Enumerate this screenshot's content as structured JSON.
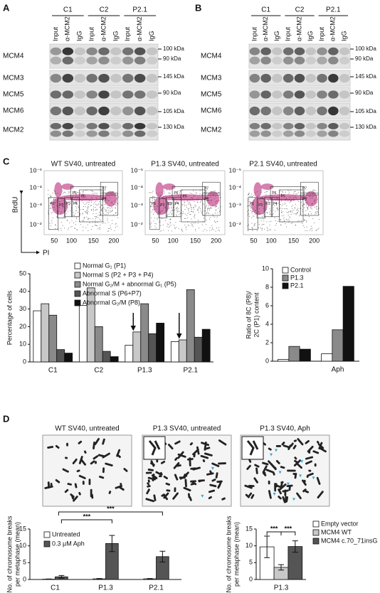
{
  "panel_labels": [
    "A",
    "B",
    "C",
    "D"
  ],
  "blots": [
    {
      "groups": [
        "C1",
        "C2",
        "P2.1"
      ],
      "lanes": [
        "Input",
        "α-MCM2",
        "IgG",
        "Input",
        "α-MCM2",
        "IgG",
        "Input",
        "α-MCM2",
        "IgG"
      ],
      "rows": [
        "MCM4",
        "MCM3",
        "MCM5",
        "MCM6",
        "MCM2"
      ],
      "markers": [
        "100 kDa",
        "90 kDa",
        "145 kDa",
        "90 kDa",
        "105 kDa",
        "130 kDa"
      ]
    },
    {
      "groups": [
        "C1",
        "C2",
        "P2.1"
      ],
      "lanes": [
        "Input",
        "α-MCM2",
        "IgG",
        "Input",
        "α-MCM2",
        "IgG",
        "Input",
        "α-MCM2",
        "IgG"
      ],
      "rows": [
        "MCM4",
        "MCM3",
        "MCM5",
        "MCM6",
        "MCM2"
      ],
      "markers": [
        "100 kDa",
        "90 kDa",
        "145 kDa",
        "90 kDa",
        "105 kDa",
        "130 kDa"
      ]
    }
  ],
  "flow": {
    "titles": [
      "WT SV40, untreated",
      "P1.3 SV40, untreated",
      "P2.1 SV40, untreated"
    ],
    "y_label": "BrdU",
    "x_label": "PI",
    "yticks": [
      "10⁻⁵",
      "10⁻⁴",
      "10⁻³",
      "10⁻²"
    ],
    "xticks": [
      50,
      100,
      150,
      200
    ],
    "gates": [
      "P1",
      "P2",
      "P3",
      "P4",
      "P5",
      "P6",
      "P7",
      "P8"
    ]
  },
  "metaphase": {
    "titles": [
      "WT SV40, untreated",
      "P1.3 SV40, untreated",
      "P1.3 SV40, Aph"
    ]
  },
  "chart_data": [
    {
      "type": "bar",
      "y_label": [
        "Percentage of cells"
      ],
      "categories": [
        "C1",
        "C2",
        "P1.3",
        "P2.1"
      ],
      "series": [
        {
          "name": "Normal G₁ (P1)",
          "color": "#ffffff",
          "values": [
            29,
            32,
            9.5,
            11.5
          ]
        },
        {
          "name": "Normal S (P2 + P3 + P4)",
          "color": "#c8c8c8",
          "values": [
            33,
            42,
            17,
            12.5
          ]
        },
        {
          "name": "Normal G₂/M + abnormal G₁ (P5)",
          "color": "#8a8a8a",
          "values": [
            26.5,
            20,
            33,
            41
          ]
        },
        {
          "name": "Abnormal S (P6+P7)",
          "color": "#555555",
          "values": [
            7,
            6,
            16,
            14
          ]
        },
        {
          "name": "Abnormal G₂/M (P8)",
          "color": "#111111",
          "values": [
            5,
            3,
            22,
            18.5
          ]
        }
      ],
      "ylim": [
        0,
        50
      ],
      "yticks": [
        0,
        10,
        20,
        30,
        40,
        50
      ]
    },
    {
      "type": "bar",
      "y_label": [
        "Ratio of 8C (P8)/",
        "2C (P1) content"
      ],
      "categories": [
        null,
        "Aph"
      ],
      "series": [
        {
          "name": "Control",
          "color": "#ffffff",
          "values": [
            0.2,
            0.8
          ]
        },
        {
          "name": "P1.3",
          "color": "#8a8a8a",
          "values": [
            1.6,
            3.4
          ]
        },
        {
          "name": "P2.1",
          "color": "#111111",
          "values": [
            1.3,
            8.1
          ]
        }
      ],
      "ylim": [
        0,
        10
      ],
      "yticks": [
        0,
        2,
        4,
        6,
        8,
        10
      ]
    },
    {
      "type": "bar",
      "y_label": [
        "No. of chromosome breaks",
        "per metaphase (mean)"
      ],
      "categories": [
        "C1",
        "P1.3",
        "P2.1"
      ],
      "series": [
        {
          "name": "Untreated",
          "color": "#ffffff",
          "values": [
            0.1,
            0.2,
            0.2
          ],
          "errors": [
            0.05,
            0.1,
            0.1
          ]
        },
        {
          "name": "0.3 μM Aph",
          "color": "#555555",
          "values": [
            0.8,
            10.7,
            6.8
          ],
          "errors": [
            0.4,
            2.4,
            1.6
          ]
        }
      ],
      "annotations": [
        "***",
        "***"
      ],
      "ylim": [
        0,
        15
      ],
      "yticks": [
        0,
        5,
        10,
        15
      ]
    },
    {
      "type": "bar",
      "y_label": [
        "No. of chromosome breaks",
        "per metaphase (mean)"
      ],
      "categories": [
        "P1.3"
      ],
      "series": [
        {
          "name": "Empty vector",
          "color": "#ffffff",
          "values": [
            9.7
          ],
          "errors": [
            3.2
          ]
        },
        {
          "name": "MCM4 WT",
          "color": "#c8c8c8",
          "values": [
            3.6
          ],
          "errors": [
            0.8
          ]
        },
        {
          "name": "MCM4 c.70_71insG",
          "color": "#555555",
          "values": [
            9.8
          ],
          "errors": [
            1.7
          ]
        }
      ],
      "annotations": [
        "***",
        "***"
      ],
      "ylim": [
        0,
        15
      ],
      "yticks": [
        0,
        5,
        10,
        15
      ]
    }
  ]
}
